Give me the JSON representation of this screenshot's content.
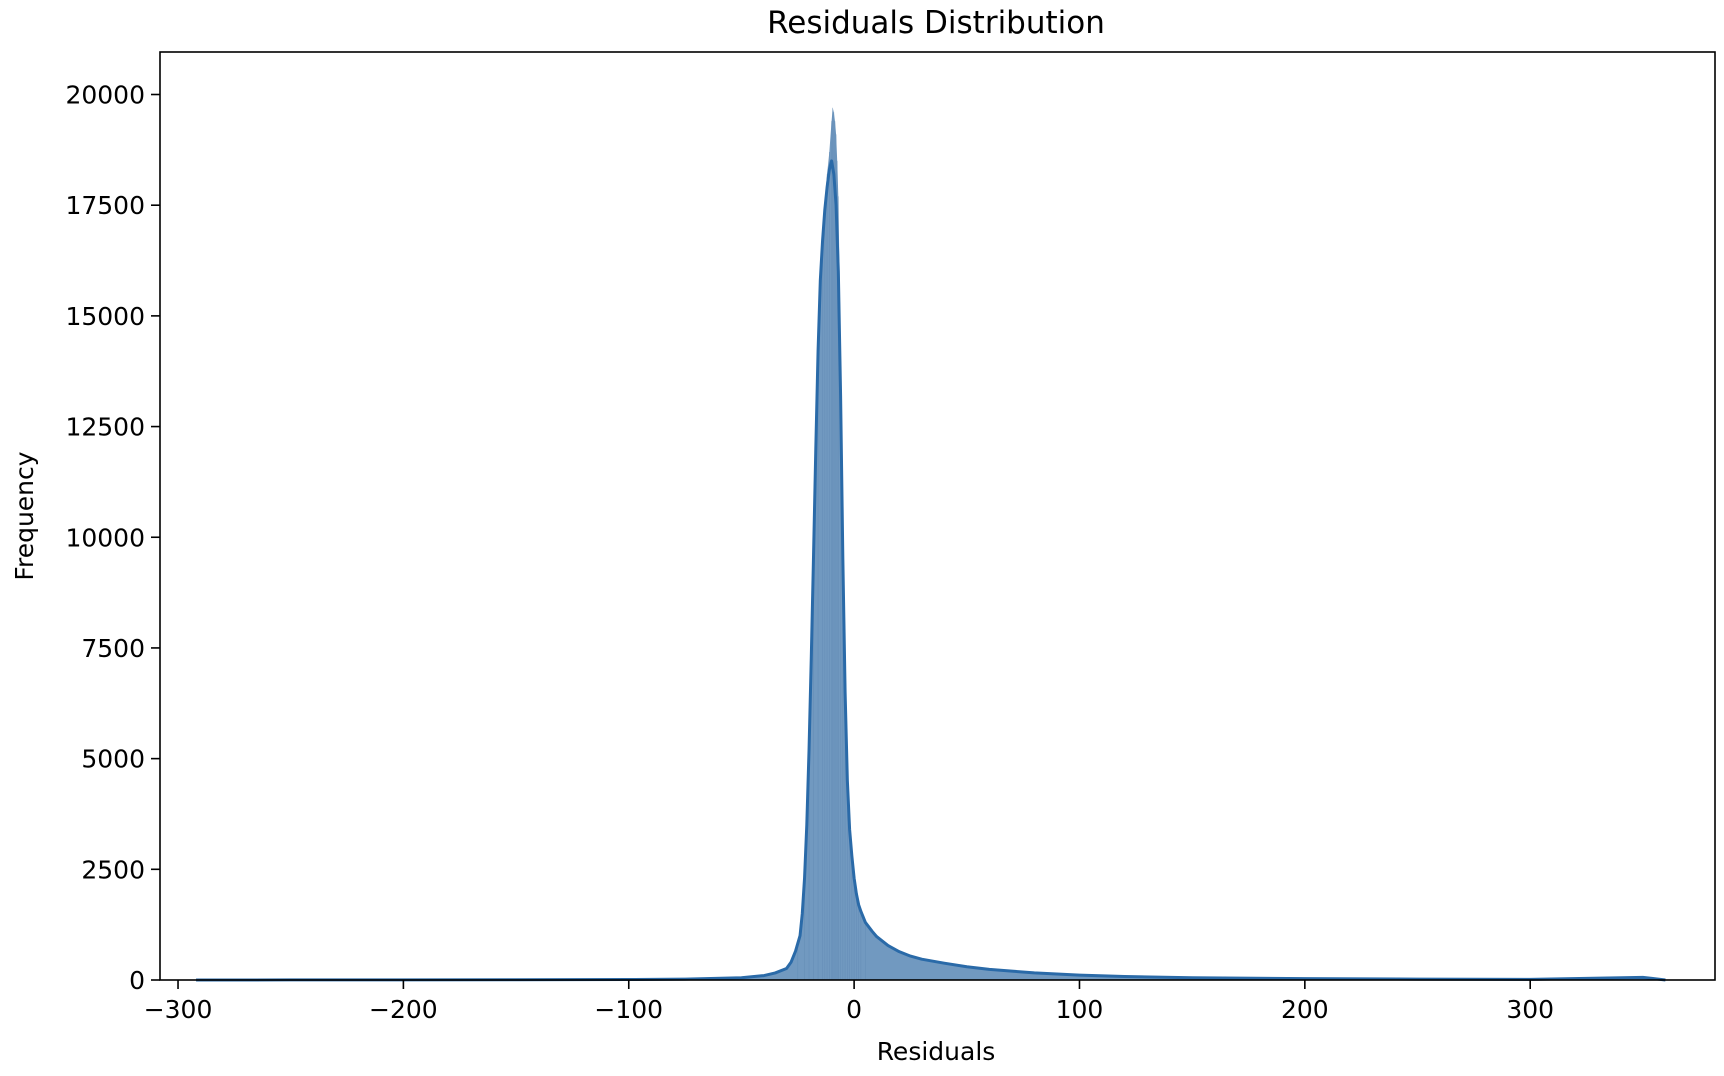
{
  "chart_data": {
    "type": "histogram",
    "title": "Residuals Distribution",
    "xlabel": "Residuals",
    "ylabel": "Frequency",
    "xlim": [
      -308,
      382
    ],
    "ylim": [
      0,
      20960
    ],
    "x_ticks": [
      -300,
      -200,
      -100,
      0,
      100,
      200,
      300
    ],
    "x_tick_labels": [
      "−300",
      "−200",
      "−100",
      "0",
      "100",
      "200",
      "300"
    ],
    "y_ticks": [
      0,
      2500,
      5000,
      7500,
      10000,
      12500,
      15000,
      17500,
      20000
    ],
    "y_tick_labels": [
      "0",
      "2500",
      "5000",
      "7500",
      "10000",
      "12500",
      "15000",
      "17500",
      "20000"
    ],
    "grid": false,
    "legend": null,
    "colors": {
      "bar_fill": "#7199c0",
      "kde_line": "#2a6aa8",
      "axes": "#000000"
    },
    "series": [
      {
        "kind": "kde",
        "x": [
          -292,
          -250,
          -200,
          -150,
          -100,
          -75,
          -50,
          -40,
          -35,
          -30,
          -28,
          -26,
          -24,
          -23,
          -22,
          -21,
          -20,
          -19,
          -18,
          -17,
          -16,
          -15,
          -14,
          -13,
          -12,
          -11,
          -10,
          -9,
          -8,
          -7,
          -6,
          -5,
          -4,
          -3,
          -2,
          -1,
          0,
          1,
          2,
          3,
          5,
          8,
          10,
          15,
          20,
          25,
          30,
          40,
          50,
          60,
          70,
          80,
          100,
          120,
          150,
          200,
          250,
          300,
          350,
          360
        ],
        "y": [
          0,
          2,
          3,
          5,
          10,
          20,
          50,
          100,
          160,
          260,
          400,
          650,
          1000,
          1500,
          2300,
          3500,
          5200,
          7300,
          9600,
          12000,
          14200,
          15800,
          16700,
          17400,
          17900,
          18300,
          18500,
          18200,
          17500,
          16000,
          13200,
          9500,
          6500,
          4500,
          3400,
          2800,
          2300,
          1950,
          1700,
          1550,
          1300,
          1100,
          980,
          780,
          640,
          540,
          470,
          380,
          300,
          240,
          200,
          160,
          110,
          80,
          50,
          30,
          20,
          15,
          60,
          0
        ]
      }
    ],
    "histogram": {
      "bin_width": 1,
      "outline_x": [
        -30,
        -25,
        -22,
        -20,
        -18,
        -16,
        -14,
        -13,
        -12,
        -11,
        -10,
        -9.5,
        -9,
        -8.5,
        -8,
        -7.5,
        -7,
        -6,
        -5,
        -4,
        -3,
        -2,
        -1,
        0,
        1,
        2,
        3,
        5
      ],
      "outline_y": [
        200,
        700,
        2100,
        5000,
        9500,
        14000,
        16700,
        17600,
        18200,
        18700,
        19400,
        19700,
        19600,
        19400,
        19100,
        18500,
        17700,
        14500,
        10000,
        6800,
        4700,
        3600,
        2900,
        2400,
        2050,
        1780,
        1600,
        1350
      ]
    }
  }
}
